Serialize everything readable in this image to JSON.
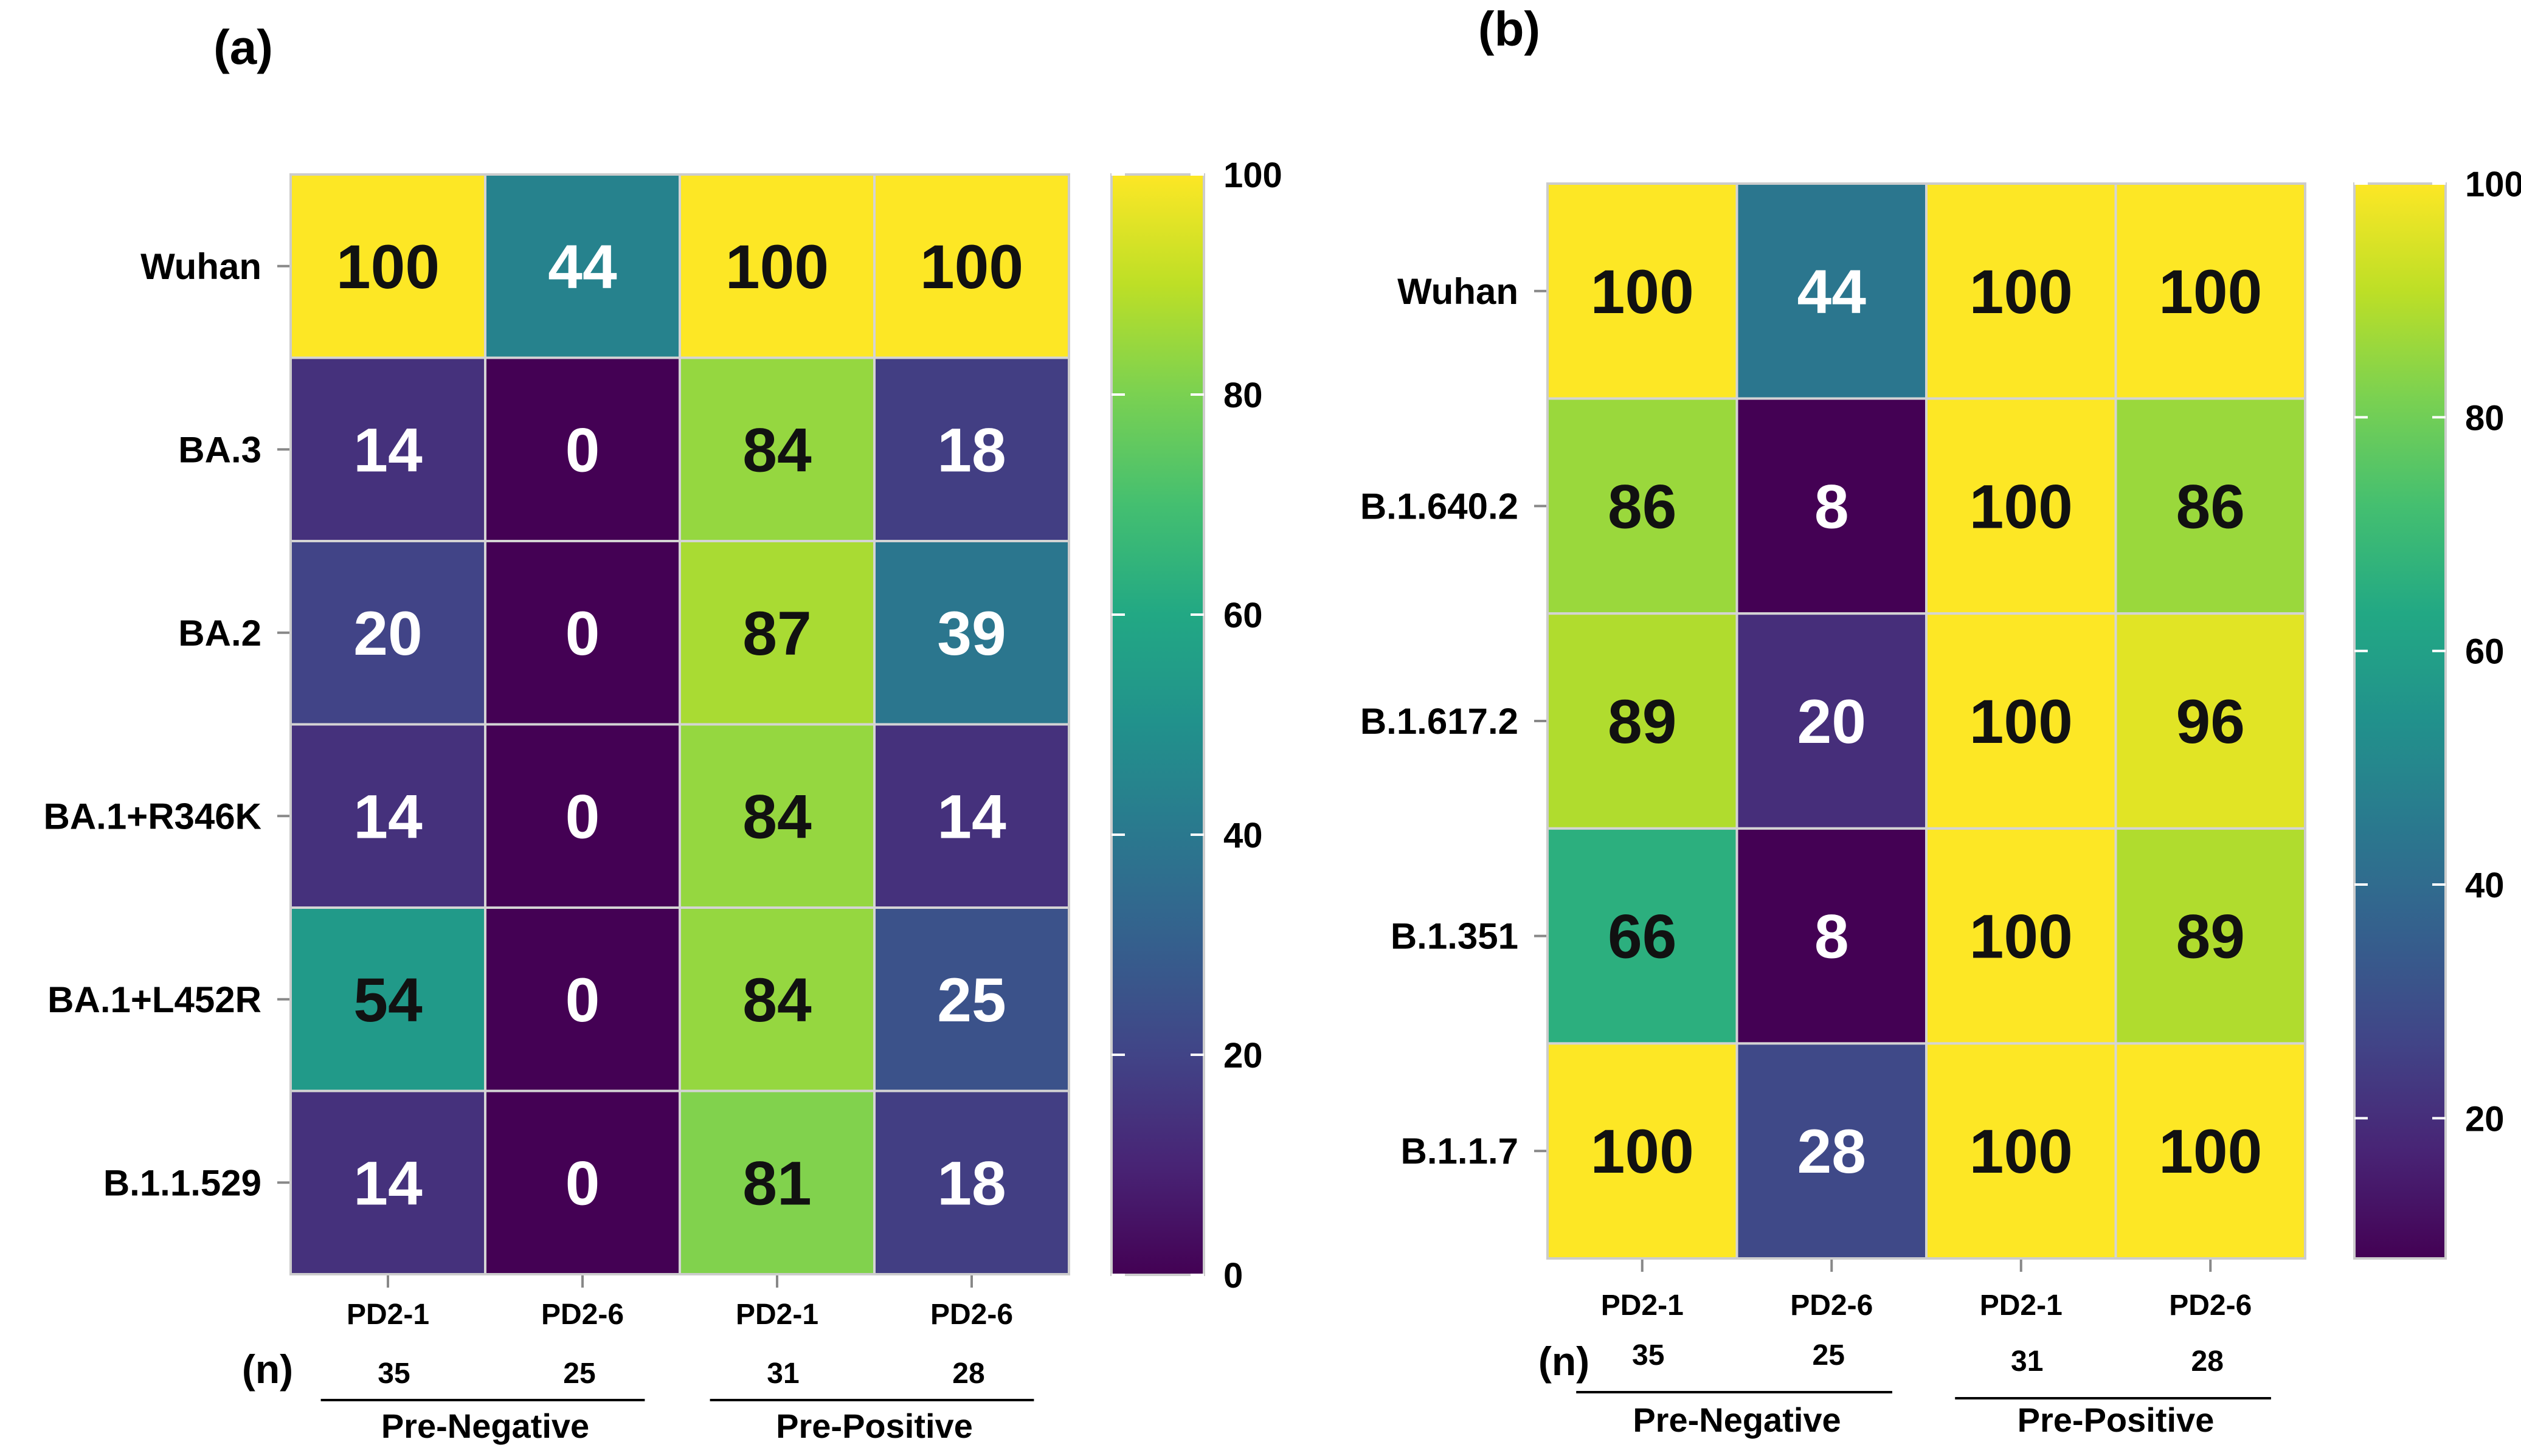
{
  "chart_data": [
    {
      "type": "heatmap",
      "panel_label": "(a)",
      "rows": [
        "Wuhan",
        "BA.3",
        "BA.2",
        "BA.1+R346K",
        "BA.1+L452R",
        "B.1.1.529"
      ],
      "columns": [
        "PD2-1",
        "PD2-6",
        "PD2-1",
        "PD2-6"
      ],
      "n_label": "(n)",
      "n_values": [
        "35",
        "25",
        "31",
        "28"
      ],
      "groups": [
        {
          "label": "Pre-Negative",
          "columns": [
            0,
            1
          ]
        },
        {
          "label": "Pre-Positive",
          "columns": [
            2,
            3
          ]
        }
      ],
      "values": [
        [
          100,
          44,
          100,
          100
        ],
        [
          14,
          0,
          84,
          18
        ],
        [
          20,
          0,
          87,
          39
        ],
        [
          14,
          0,
          84,
          14
        ],
        [
          54,
          0,
          84,
          25
        ],
        [
          14,
          0,
          81,
          18
        ]
      ],
      "colorbar": {
        "min": 0,
        "max": 100,
        "ticks": [
          "0",
          "20",
          "40",
          "60",
          "80",
          "100"
        ],
        "colormap": "viridis"
      }
    },
    {
      "type": "heatmap",
      "panel_label": "(b)",
      "rows": [
        "Wuhan",
        "B.1.640.2",
        "B.1.617.2",
        "B.1.351",
        "B.1.1.7"
      ],
      "columns": [
        "PD2-1",
        "PD2-6",
        "PD2-1",
        "PD2-6"
      ],
      "n_label": "(n)",
      "n_values": [
        "35",
        "25",
        "31",
        "28"
      ],
      "groups": [
        {
          "label": "Pre-Negative",
          "columns": [
            0,
            1
          ]
        },
        {
          "label": "Pre-Positive",
          "columns": [
            2,
            3
          ]
        }
      ],
      "values": [
        [
          100,
          44,
          100,
          100
        ],
        [
          86,
          8,
          100,
          86
        ],
        [
          89,
          20,
          100,
          96
        ],
        [
          66,
          8,
          100,
          89
        ],
        [
          100,
          28,
          100,
          100
        ]
      ],
      "colorbar": {
        "min": 8,
        "max": 100,
        "ticks": [
          "20",
          "40",
          "60",
          "80",
          "100"
        ],
        "colormap": "viridis"
      }
    }
  ]
}
